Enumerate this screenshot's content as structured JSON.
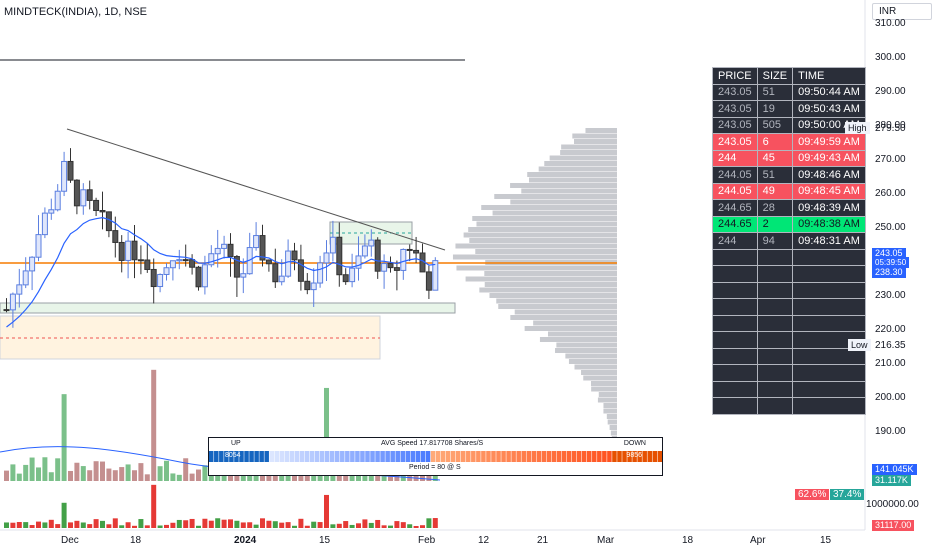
{
  "header": {
    "title": "MINDTECK(INDIA), 1D, NSE",
    "currency": "INR"
  },
  "price_axis": {
    "ticks": [
      "310.00",
      "300.00",
      "290.00",
      "280.00",
      "270.00",
      "260.00",
      "250.00",
      "240.00",
      "230.00",
      "220.00",
      "210.00",
      "200.00",
      "190.00"
    ],
    "volume_tick": "1000000.00"
  },
  "price_tags": {
    "high_label": "High",
    "high_value": "279.50",
    "low_label": "Low",
    "low_value": "216.35",
    "last_price": "243.05",
    "countdown": "05:39:50",
    "ema": "238.30",
    "vol1": "141.045K",
    "vol2": "31.117K",
    "pct_up": "62.6%",
    "pct_down": "37.4%",
    "vol3": "31117.00"
  },
  "time_axis": [
    "Dec",
    "18",
    "2024",
    "15",
    "Feb",
    "12",
    "21",
    "Mar",
    "18",
    "Apr",
    "15"
  ],
  "time_sales": {
    "headers": [
      "PRICE",
      "SIZE",
      "TIME"
    ],
    "rows": [
      {
        "price": "243.05",
        "size": "51",
        "time": "09:50:44 AM",
        "style": "dark"
      },
      {
        "price": "243.05",
        "size": "19",
        "time": "09:50:43 AM",
        "style": "dark"
      },
      {
        "price": "243.05",
        "size": "505",
        "time": "09:50:00 AM",
        "style": "dark"
      },
      {
        "price": "243.05",
        "size": "6",
        "time": "09:49:59 AM",
        "style": "red"
      },
      {
        "price": "244",
        "size": "45",
        "time": "09:49:43 AM",
        "style": "red"
      },
      {
        "price": "244.05",
        "size": "51",
        "time": "09:48:46 AM",
        "style": "dark"
      },
      {
        "price": "244.05",
        "size": "49",
        "time": "09:48:45 AM",
        "style": "red"
      },
      {
        "price": "244.65",
        "size": "28",
        "time": "09:48:39 AM",
        "style": "dark"
      },
      {
        "price": "244.65",
        "size": "2",
        "time": "09:48:38 AM",
        "style": "green"
      },
      {
        "price": "244",
        "size": "94",
        "time": "09:48:31 AM",
        "style": "dark"
      }
    ],
    "empty_rows": 10
  },
  "speed_panel": {
    "up_label": "UP",
    "avg_label": "AVG Speed 17.817708 Shares/S",
    "down_label": "DOWN",
    "up_value": "8054",
    "down_value": "9856",
    "period_label": "Period = 80 @ S"
  },
  "colors": {
    "up": "#26a69a",
    "down": "#ef5350",
    "poc": "#f57c00",
    "ema": "#2962ff",
    "accent": "#2962ff"
  }
}
